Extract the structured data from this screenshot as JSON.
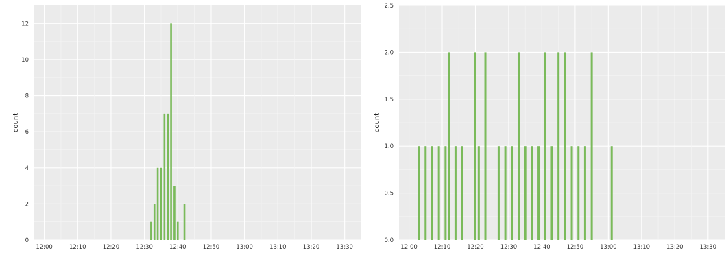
{
  "chart_data": [
    {
      "type": "bar",
      "title": "",
      "xlabel": "",
      "ylabel": "count",
      "ylim": [
        0,
        13
      ],
      "yticks": [
        0,
        2,
        4,
        6,
        8,
        10,
        12
      ],
      "ytick_labels": [
        "0",
        "2",
        "4",
        "6",
        "8",
        "10",
        "12"
      ],
      "xlim": [
        "11:57",
        "13:35"
      ],
      "xticks": [
        "12:00",
        "12:10",
        "12:20",
        "12:30",
        "12:40",
        "12:50",
        "13:00",
        "13:10",
        "13:20",
        "13:30"
      ],
      "grid": true,
      "bar_color": "#7aba5a",
      "background": "#ebebeb",
      "x": [
        "12:32",
        "12:33",
        "12:34",
        "12:35",
        "12:36",
        "12:37",
        "12:38",
        "12:39",
        "12:40",
        "12:42"
      ],
      "values": [
        1,
        2,
        4,
        4,
        7,
        7,
        12,
        3,
        1,
        2
      ]
    },
    {
      "type": "bar",
      "title": "",
      "xlabel": "",
      "ylabel": "count",
      "ylim": [
        0,
        2.5
      ],
      "yticks": [
        0,
        0.5,
        1,
        1.5,
        2,
        2.5
      ],
      "ytick_labels": [
        "0.0",
        "0.5",
        "1.0",
        "1.5",
        "2.0",
        "2.5"
      ],
      "xlim": [
        "11:57",
        "13:35"
      ],
      "xticks": [
        "12:00",
        "12:10",
        "12:20",
        "12:30",
        "12:40",
        "12:50",
        "13:00",
        "13:10",
        "13:20",
        "13:30"
      ],
      "grid": true,
      "bar_color": "#7aba5a",
      "background": "#ebebeb",
      "x": [
        "12:03",
        "12:05",
        "12:07",
        "12:09",
        "12:11",
        "12:12",
        "12:14",
        "12:16",
        "12:20",
        "12:21",
        "12:23",
        "12:27",
        "12:29",
        "12:31",
        "12:33",
        "12:35",
        "12:37",
        "12:39",
        "12:41",
        "12:43",
        "12:45",
        "12:47",
        "12:49",
        "12:51",
        "12:53",
        "12:55",
        "13:01"
      ],
      "values": [
        1,
        1,
        1,
        1,
        1,
        2,
        1,
        1,
        2,
        1,
        2,
        1,
        1,
        1,
        2,
        1,
        1,
        1,
        2,
        1,
        2,
        2,
        1,
        1,
        1,
        2,
        1
      ]
    }
  ]
}
